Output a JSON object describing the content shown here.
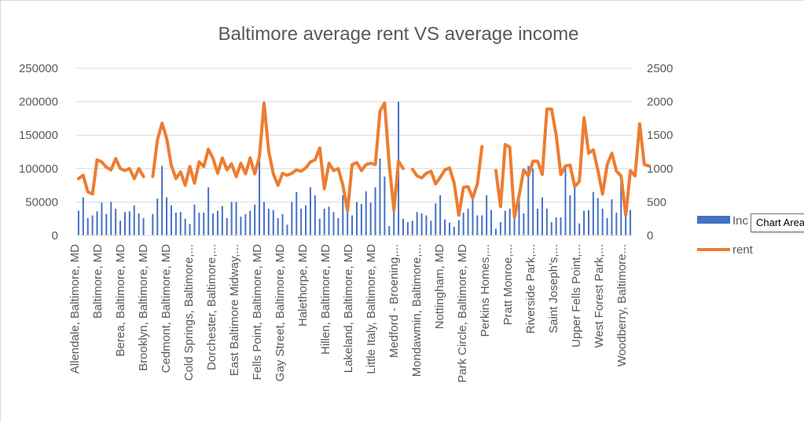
{
  "chart_data": {
    "type": "bar+line",
    "title": "Baltimore average rent VS average income",
    "xlabel": "",
    "y_left": {
      "lim": [
        0,
        250000
      ],
      "ticks": [
        "0",
        "50000",
        "100000",
        "150000",
        "200000",
        "250000"
      ]
    },
    "y_right": {
      "lim": [
        0,
        2500
      ],
      "ticks": [
        "0",
        "500",
        "1000",
        "1500",
        "2000",
        "2500"
      ]
    },
    "gridlines": true,
    "legend_position": "right",
    "category_labels": [
      "Allendale, Baltimore, MD",
      "Baltimore, MD",
      "Berea, Baltimore, MD",
      "Brooklyn, Baltimore, MD",
      "Cedmont, Baltimore, MD",
      "Cold Springs, Baltimore,...",
      "Dorchester, Baltimore,...",
      "East Baltimore Midway,...",
      "Fells Point, Baltimore, MD",
      "Gay Street, Baltimore, MD",
      "Halethorpe, MD",
      "Hillen, Baltimore, MD",
      "Lakeland, Baltimore, MD",
      "Little Italy, Baltimore, MD",
      "Medford - Broening,...",
      "Mondawmin, Baltimore,...",
      "Nottingham, MD",
      "Park Circle, Baltimore, MD",
      "Perkins Homes,...",
      "Pratt Monroe,...",
      "Riverside Park,...",
      "Saint Joseph's,...",
      "Upper Fells Point,...",
      "West Forest Park,...",
      "Woodberry, Baltimore..."
    ],
    "series": [
      {
        "name": "Inc",
        "type": "bar",
        "axis": "left",
        "color": "#4472c4",
        "values": [
          37000,
          57000,
          26000,
          30000,
          36000,
          49000,
          32000,
          50000,
          40000,
          22000,
          35000,
          36000,
          45000,
          33000,
          26000,
          0,
          32000,
          55000,
          104000,
          57000,
          45000,
          34000,
          35000,
          25000,
          17000,
          46000,
          34000,
          34000,
          72000,
          33000,
          37000,
          44000,
          26000,
          50000,
          50000,
          28000,
          32000,
          37000,
          46000,
          112000,
          50000,
          40000,
          38000,
          26000,
          32000,
          16000,
          50000,
          65000,
          40000,
          45000,
          72000,
          60000,
          25000,
          40000,
          43000,
          35000,
          26000,
          60000,
          50000,
          30000,
          50000,
          47000,
          66000,
          49000,
          72000,
          115000,
          88000,
          14000,
          56000,
          200000,
          25000,
          20000,
          22000,
          35000,
          33000,
          30000,
          22000,
          48000,
          60000,
          24000,
          19000,
          13000,
          23000,
          34000,
          40000,
          62000,
          30000,
          30000,
          60000,
          38000,
          10000,
          20000,
          37000,
          40000,
          42000,
          55000,
          33000,
          104000,
          100000,
          40000,
          57000,
          40000,
          20000,
          27000,
          27000,
          103000,
          60000,
          75000,
          18000,
          37000,
          38000,
          65000,
          56000,
          40000,
          26000,
          54000,
          34000,
          80000,
          33000,
          38000
        ],
        "line_values": null
      },
      {
        "name": "rent",
        "type": "line",
        "axis": "right",
        "color": "#ed7d31",
        "values": [
          850,
          900,
          650,
          620,
          1130,
          1100,
          1020,
          980,
          1150,
          1000,
          970,
          1000,
          850,
          1000,
          880,
          null,
          880,
          1430,
          1680,
          1450,
          1050,
          850,
          950,
          750,
          1030,
          780,
          1100,
          1030,
          1290,
          1150,
          930,
          1160,
          980,
          1070,
          880,
          1080,
          920,
          1160,
          920,
          1180,
          1980,
          1260,
          920,
          750,
          930,
          900,
          930,
          980,
          960,
          1010,
          1100,
          1130,
          1310,
          700,
          1080,
          970,
          1000,
          750,
          370,
          1060,
          1090,
          970,
          1060,
          1080,
          1060,
          1860,
          1980,
          1050,
          380,
          1110,
          1000,
          null,
          990,
          890,
          860,
          930,
          960,
          770,
          870,
          980,
          1010,
          780,
          300,
          720,
          730,
          560,
          770,
          1330,
          null,
          null,
          970,
          430,
          1360,
          1320,
          270,
          600,
          980,
          890,
          1110,
          1110,
          910,
          1890,
          1890,
          1500,
          910,
          1040,
          1050,
          730,
          810,
          1760,
          1230,
          1280,
          970,
          620,
          1060,
          1230,
          960,
          890,
          300,
          970,
          890,
          1670,
          1060,
          1040
        ]
      }
    ]
  },
  "legend": {
    "bar_label": "Inc",
    "line_label": "rent"
  },
  "tooltip": {
    "text": "Chart Area"
  },
  "colors": {
    "bar": "#4472c4",
    "line": "#ed7d31",
    "grid": "#d9d9d9",
    "text": "#595959"
  }
}
